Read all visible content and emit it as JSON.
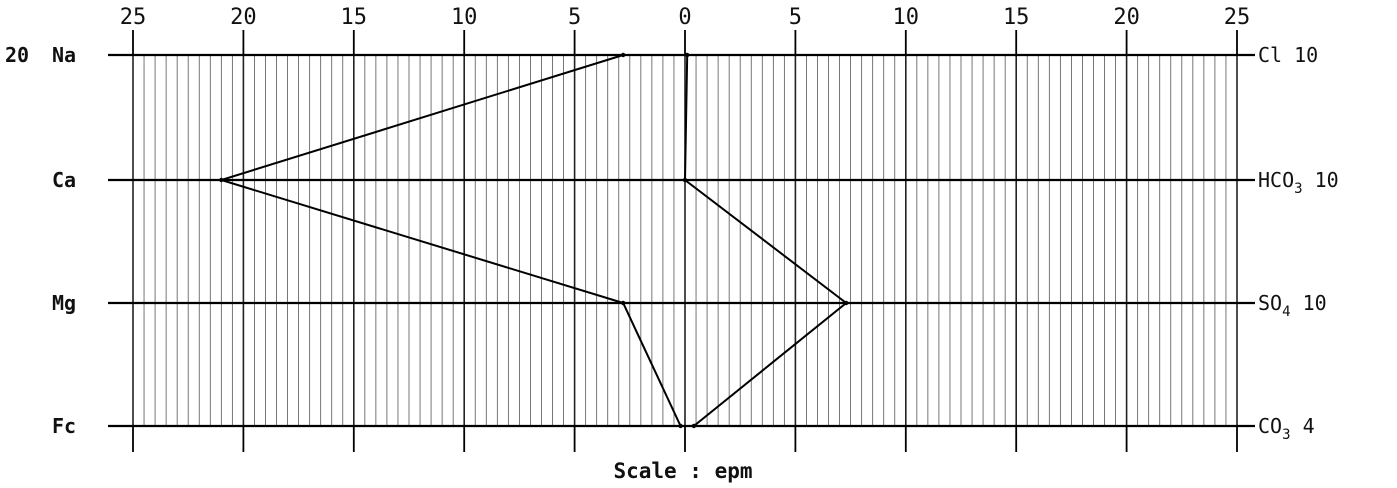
{
  "chart_data": {
    "type": "line",
    "subtype": "stiff-diagram",
    "xlabel": "Scale : epm",
    "x_range": [
      -25,
      25
    ],
    "x_ticks": [
      -25,
      -20,
      -15,
      -10,
      -5,
      0,
      5,
      10,
      15,
      20,
      25
    ],
    "x_tick_labels": [
      "25",
      "20",
      "15",
      "10",
      "5",
      "0",
      "5",
      "10",
      "15",
      "20",
      "25"
    ],
    "x_tick_positions": [
      "top",
      "bottom"
    ],
    "cations": [
      {
        "name": "Na",
        "prefix": "20",
        "value": 2.8
      },
      {
        "name": "Ca",
        "prefix": "",
        "value": 21
      },
      {
        "name": "Mg",
        "prefix": "",
        "value": 2.8
      },
      {
        "name": "Fe",
        "prefix": "",
        "value": 0.2
      }
    ],
    "cation_display": [
      "Na",
      "Ca",
      "Mg",
      "Fc"
    ],
    "anions": [
      {
        "name": "Cl",
        "display": "Cl",
        "suffix": "10",
        "value": 0.1
      },
      {
        "name": "HCO3",
        "display": "HCO",
        "sub": "3",
        "suffix": "10",
        "value": 0
      },
      {
        "name": "SO4",
        "display": "SO",
        "sub": "4",
        "suffix": "10",
        "value": 7.3
      },
      {
        "name": "CO3",
        "display": "CO",
        "sub": "3",
        "suffix": "4",
        "value": 0.4
      }
    ],
    "grid": true,
    "line_color": "#000000"
  }
}
